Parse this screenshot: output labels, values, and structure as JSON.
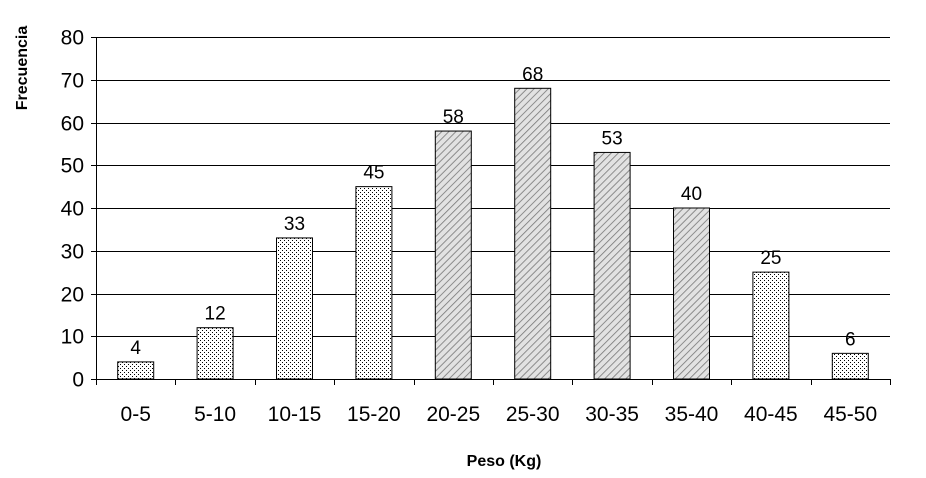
{
  "chart_data": {
    "type": "bar",
    "title": "",
    "xlabel": "Peso (Kg)",
    "ylabel": "Frecuencia",
    "categories": [
      "0-5",
      "5-10",
      "10-15",
      "15-20",
      "20-25",
      "25-30",
      "30-35",
      "35-40",
      "40-45",
      "45-50"
    ],
    "values": [
      4,
      12,
      33,
      45,
      58,
      68,
      53,
      40,
      25,
      6
    ],
    "patterns": [
      "dots",
      "dots",
      "dots",
      "dots",
      "hatch",
      "hatch",
      "hatch",
      "hatch",
      "dots",
      "dots"
    ],
    "ylim": [
      0,
      80
    ],
    "yticks": [
      0,
      10,
      20,
      30,
      40,
      50,
      60,
      70,
      80
    ],
    "grid": true,
    "legend": "none",
    "data_labels": true
  }
}
